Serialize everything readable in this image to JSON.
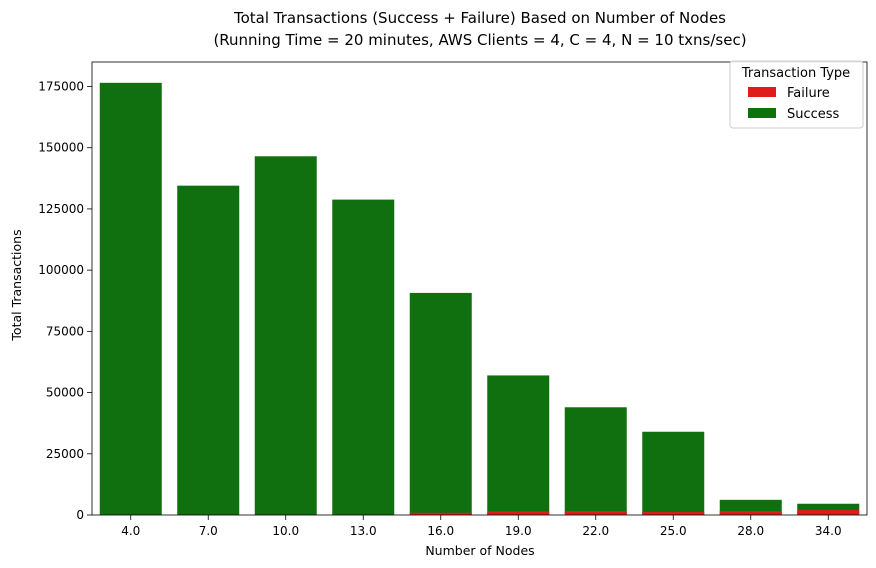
{
  "chart_data": {
    "type": "bar",
    "stacked": false,
    "title_line1": "Total Transactions (Success + Failure) Based on Number of Nodes",
    "title_line2": "(Running Time = 20 minutes, AWS Clients = 4, C = 4, N = 10 txns/sec)",
    "xlabel": "Number of Nodes",
    "ylabel": "Total Transactions",
    "categories": [
      "4.0",
      "7.0",
      "10.0",
      "13.0",
      "16.0",
      "19.0",
      "22.0",
      "25.0",
      "28.0",
      "34.0"
    ],
    "ylim": [
      0,
      185000
    ],
    "yticks": [
      0,
      25000,
      50000,
      75000,
      100000,
      125000,
      150000,
      175000
    ],
    "legend": {
      "title": "Transaction Type",
      "placement": "top-right"
    },
    "grid": false,
    "series": [
      {
        "name": "Success",
        "color": "#107010",
        "values": [
          176500,
          134500,
          146500,
          128800,
          90700,
          57000,
          44000,
          34000,
          6200,
          4600
        ]
      },
      {
        "name": "Failure",
        "color": "#e01b1b",
        "values": [
          0,
          0,
          0,
          0,
          900,
          1500,
          1600,
          1200,
          1600,
          2000
        ]
      }
    ]
  }
}
